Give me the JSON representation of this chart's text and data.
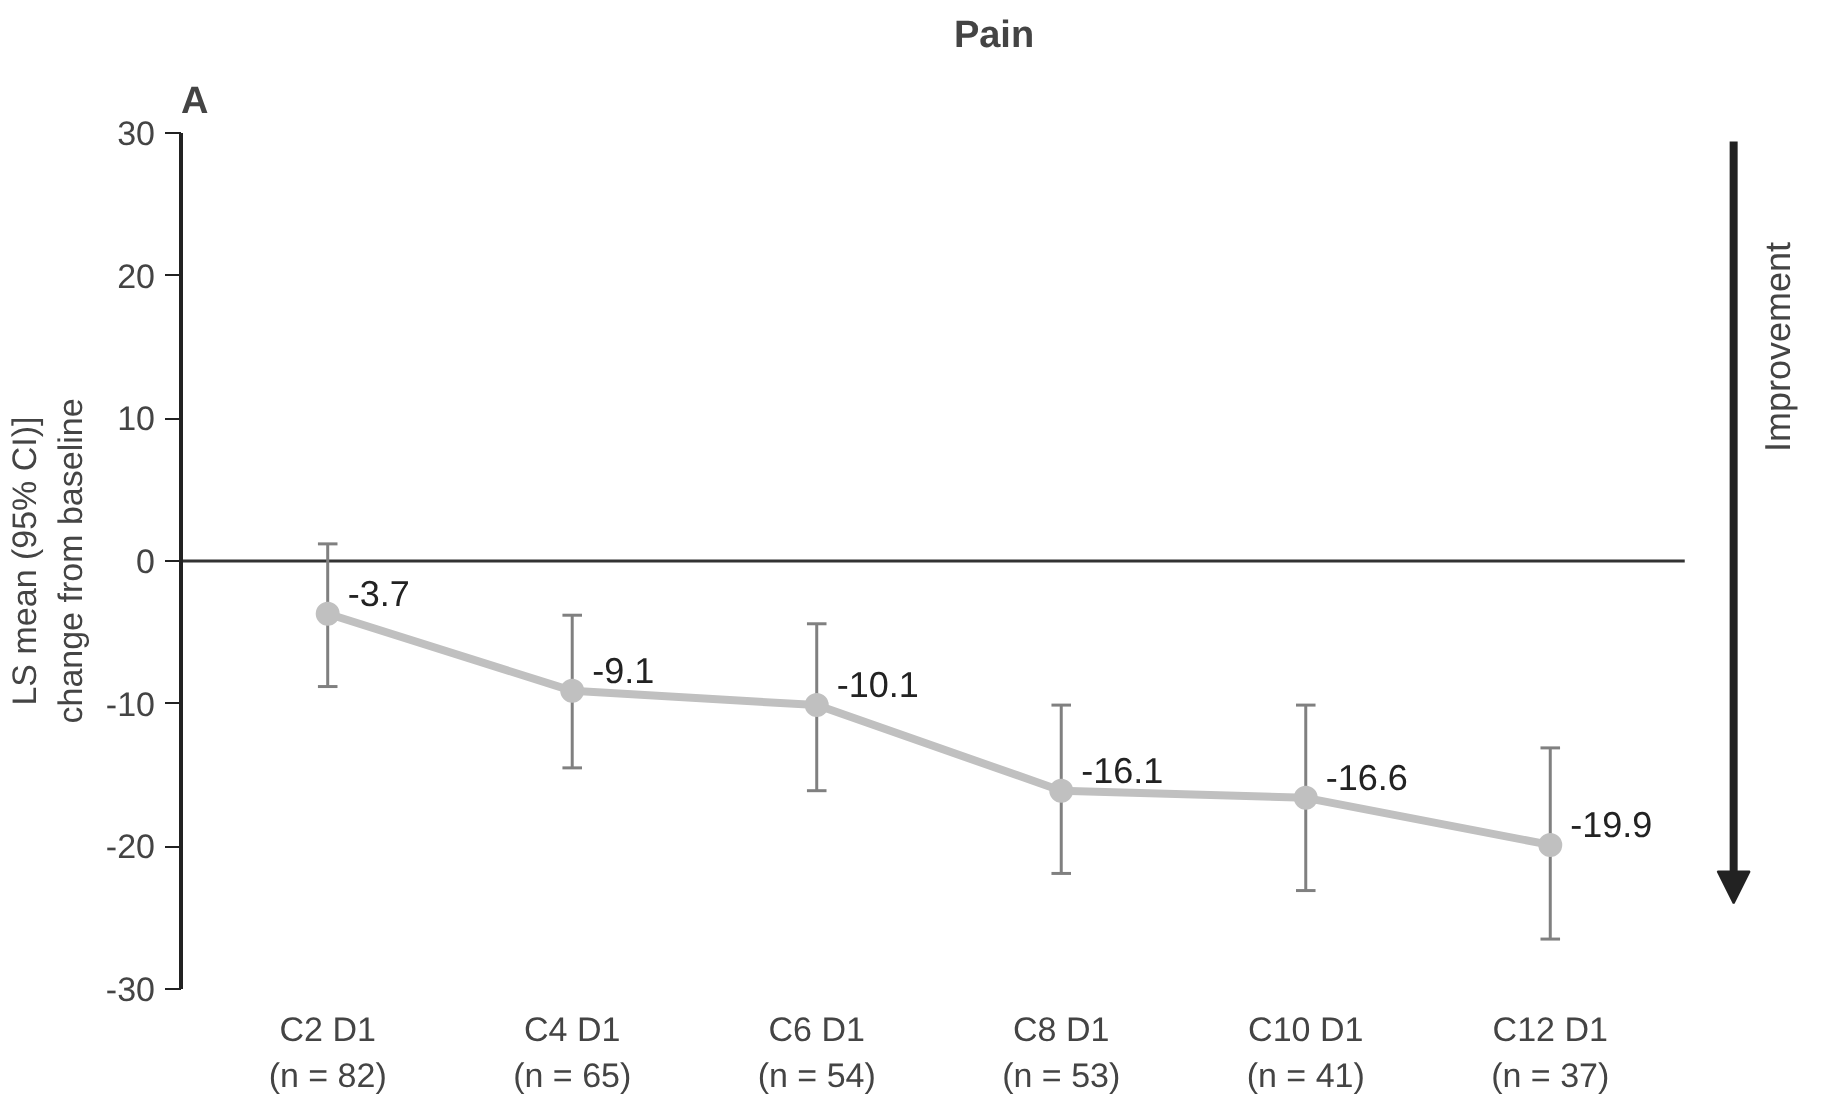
{
  "chart_data": {
    "type": "line",
    "title": "Pain",
    "ylabel": "LS mean (95% CI)]\nchange from baseline",
    "annotations": [
      "A",
      "Improvement"
    ],
    "categories": [
      "C2 D1\n(n = 82)",
      "C4 D1\n(n = 65)",
      "C6 D1\n(n = 54)",
      "C8 D1\n(n = 53)",
      "C10 D1\n(n = 41)",
      "C12 D1\n(n = 37)"
    ],
    "series": [
      {
        "color": "#c0c0c0",
        "values": [
          -3.7,
          -9.1,
          -10.1,
          -16.1,
          -16.6,
          -19.9
        ],
        "errors": [
          [
            -8.8,
            1.2
          ],
          [
            -14.5,
            -3.8
          ],
          [
            -16.1,
            -4.4
          ],
          [
            -21.9,
            -10.1
          ],
          [
            -23.1,
            -10.1
          ],
          [
            -26.5,
            -13.1
          ]
        ]
      }
    ],
    "ylim": [
      -30,
      30
    ],
    "yticks": [
      -30,
      -20,
      -10,
      0,
      10,
      20,
      30
    ],
    "ref_lines": [
      {
        "axis": "y",
        "value": 0,
        "color": "#333333"
      }
    ],
    "data_labels": true,
    "marker": "circle",
    "line_style": "solid",
    "grid": false
  }
}
